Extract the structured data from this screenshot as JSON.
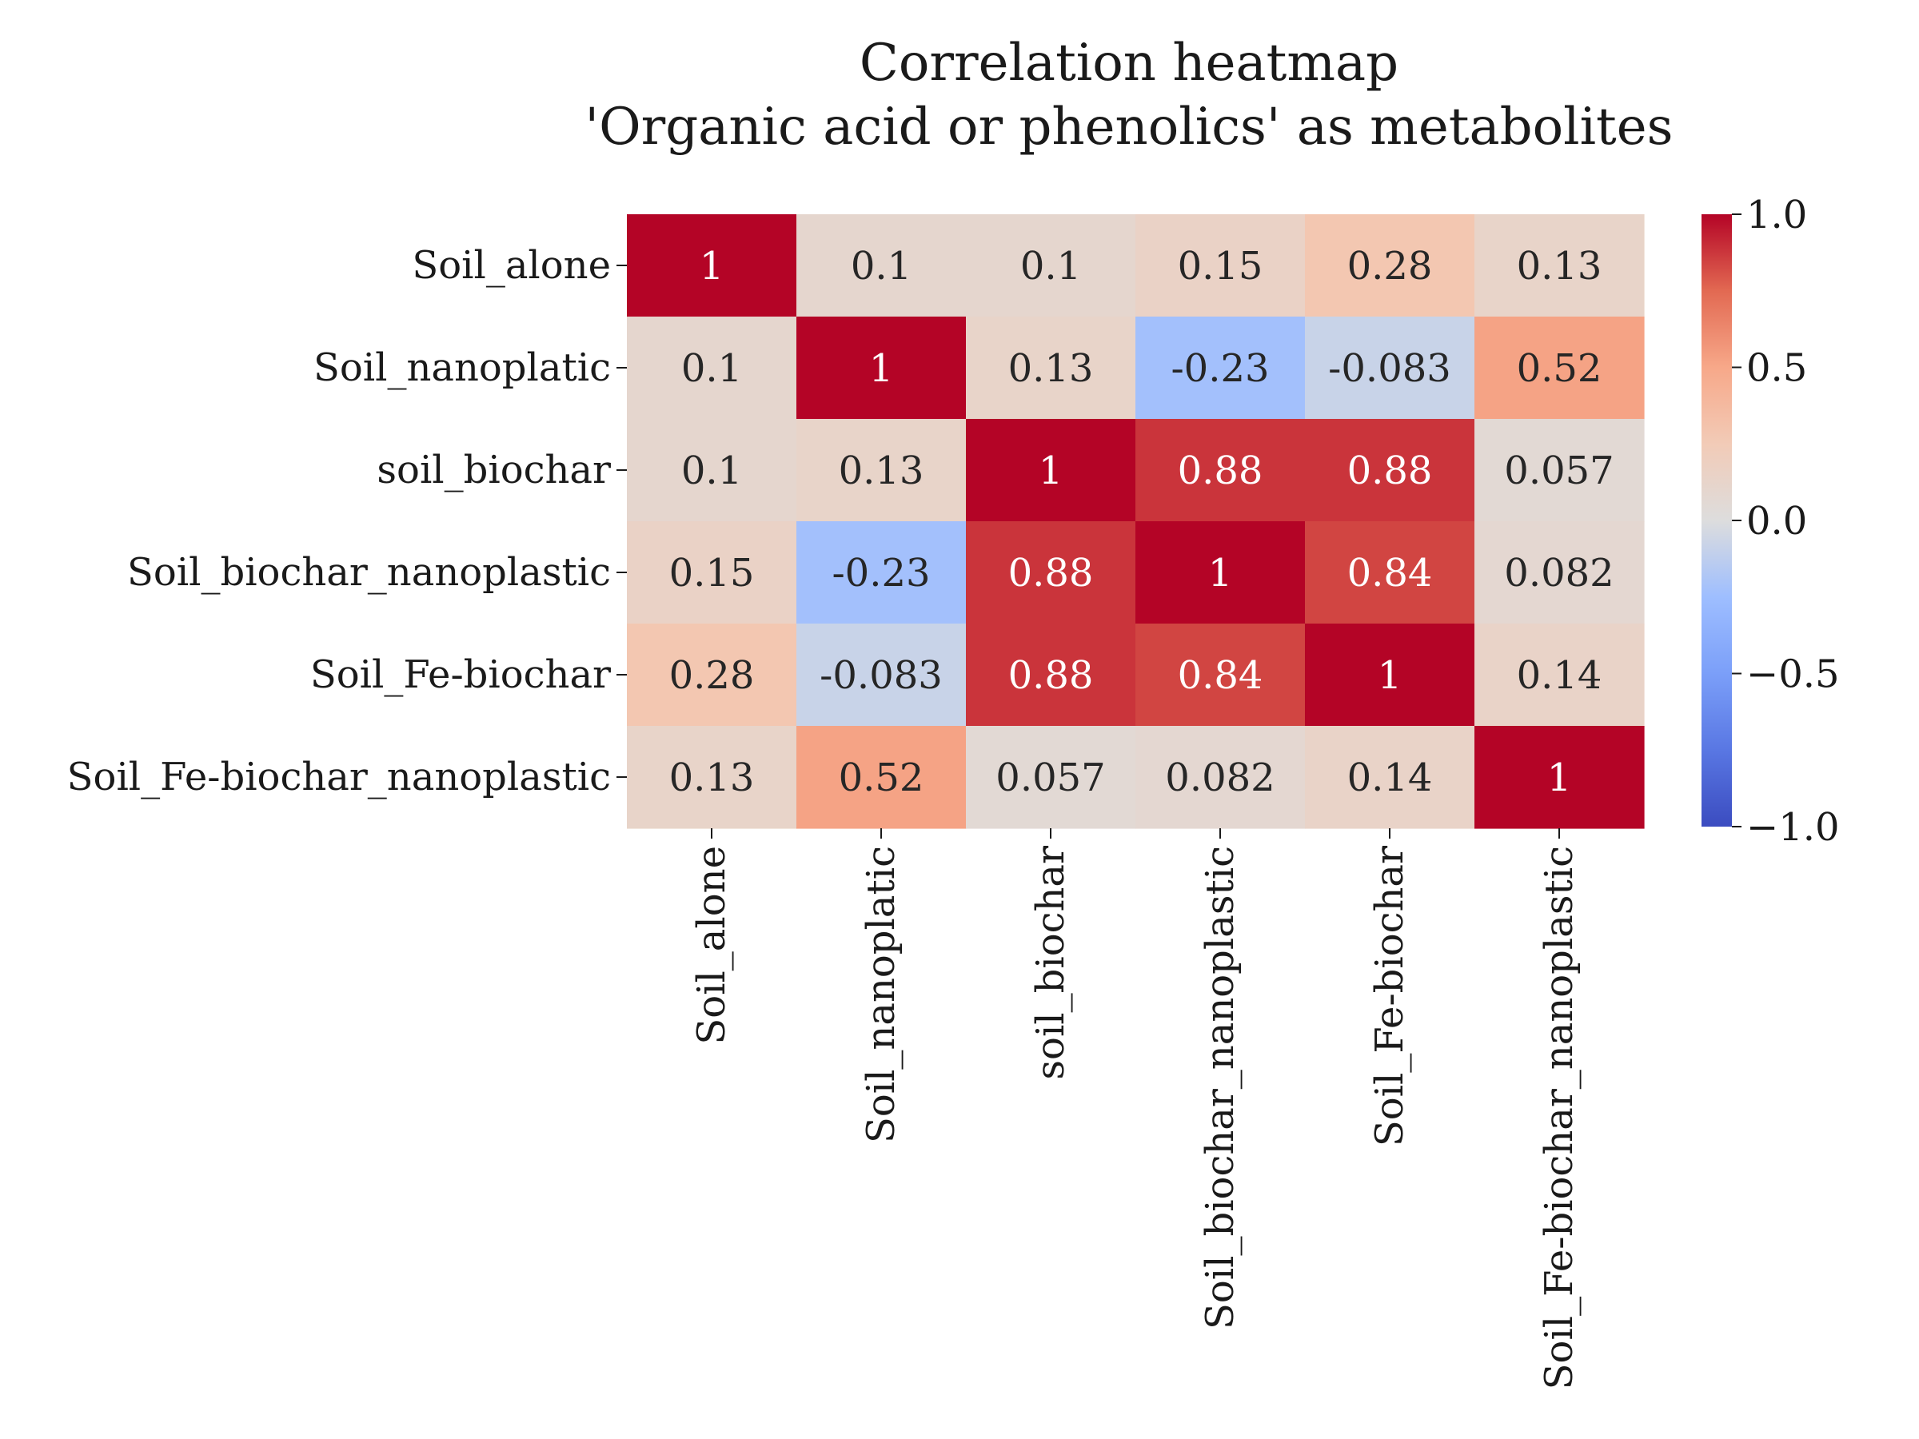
{
  "chart_data": {
    "type": "heatmap",
    "title": "Correlation heatmap",
    "subtitle": "'Organic acid or phenolics' as metabolites",
    "rows": [
      "Soil_alone",
      "Soil_nanoplatic",
      "soil_biochar",
      "Soil_biochar_nanoplastic",
      "Soil_Fe-biochar",
      "Soil_Fe-biochar_nanoplastic"
    ],
    "columns": [
      "Soil_alone",
      "Soil_nanoplatic",
      "soil_biochar",
      "Soil_biochar_nanoplastic",
      "Soil_Fe-biochar",
      "Soil_Fe-biochar_nanoplastic"
    ],
    "values": [
      [
        1,
        0.1,
        0.1,
        0.15,
        0.28,
        0.13
      ],
      [
        0.1,
        1,
        0.13,
        -0.23,
        -0.083,
        0.52
      ],
      [
        0.1,
        0.13,
        1,
        0.88,
        0.88,
        0.057
      ],
      [
        0.15,
        -0.23,
        0.88,
        1,
        0.84,
        0.082
      ],
      [
        0.28,
        -0.083,
        0.88,
        0.84,
        1,
        0.14
      ],
      [
        0.13,
        0.52,
        0.057,
        0.082,
        0.14,
        1
      ]
    ],
    "cell_labels": [
      [
        "1",
        "0.1",
        "0.1",
        "0.15",
        "0.28",
        "0.13"
      ],
      [
        "0.1",
        "1",
        "0.13",
        "-0.23",
        "-0.083",
        "0.52"
      ],
      [
        "0.1",
        "0.13",
        "1",
        "0.88",
        "0.88",
        "0.057"
      ],
      [
        "0.15",
        "-0.23",
        "0.88",
        "1",
        "0.84",
        "0.082"
      ],
      [
        "0.28",
        "-0.083",
        "0.88",
        "0.84",
        "1",
        "0.14"
      ],
      [
        "0.13",
        "0.52",
        "0.057",
        "0.082",
        "0.14",
        "1"
      ]
    ],
    "colormap": "coolwarm",
    "color_low": "#3b4cc0",
    "color_mid": "#dddddd",
    "color_high": "#b40426",
    "vmin": -1.0,
    "vmax": 1.0,
    "colorbar_ticks": [
      1.0,
      0.5,
      0.0,
      -0.5,
      -1.0
    ],
    "colorbar_tick_labels": [
      "1.0",
      "0.5",
      "0.0",
      "−0.5",
      "−1.0"
    ],
    "colorbar_placement": "right"
  }
}
